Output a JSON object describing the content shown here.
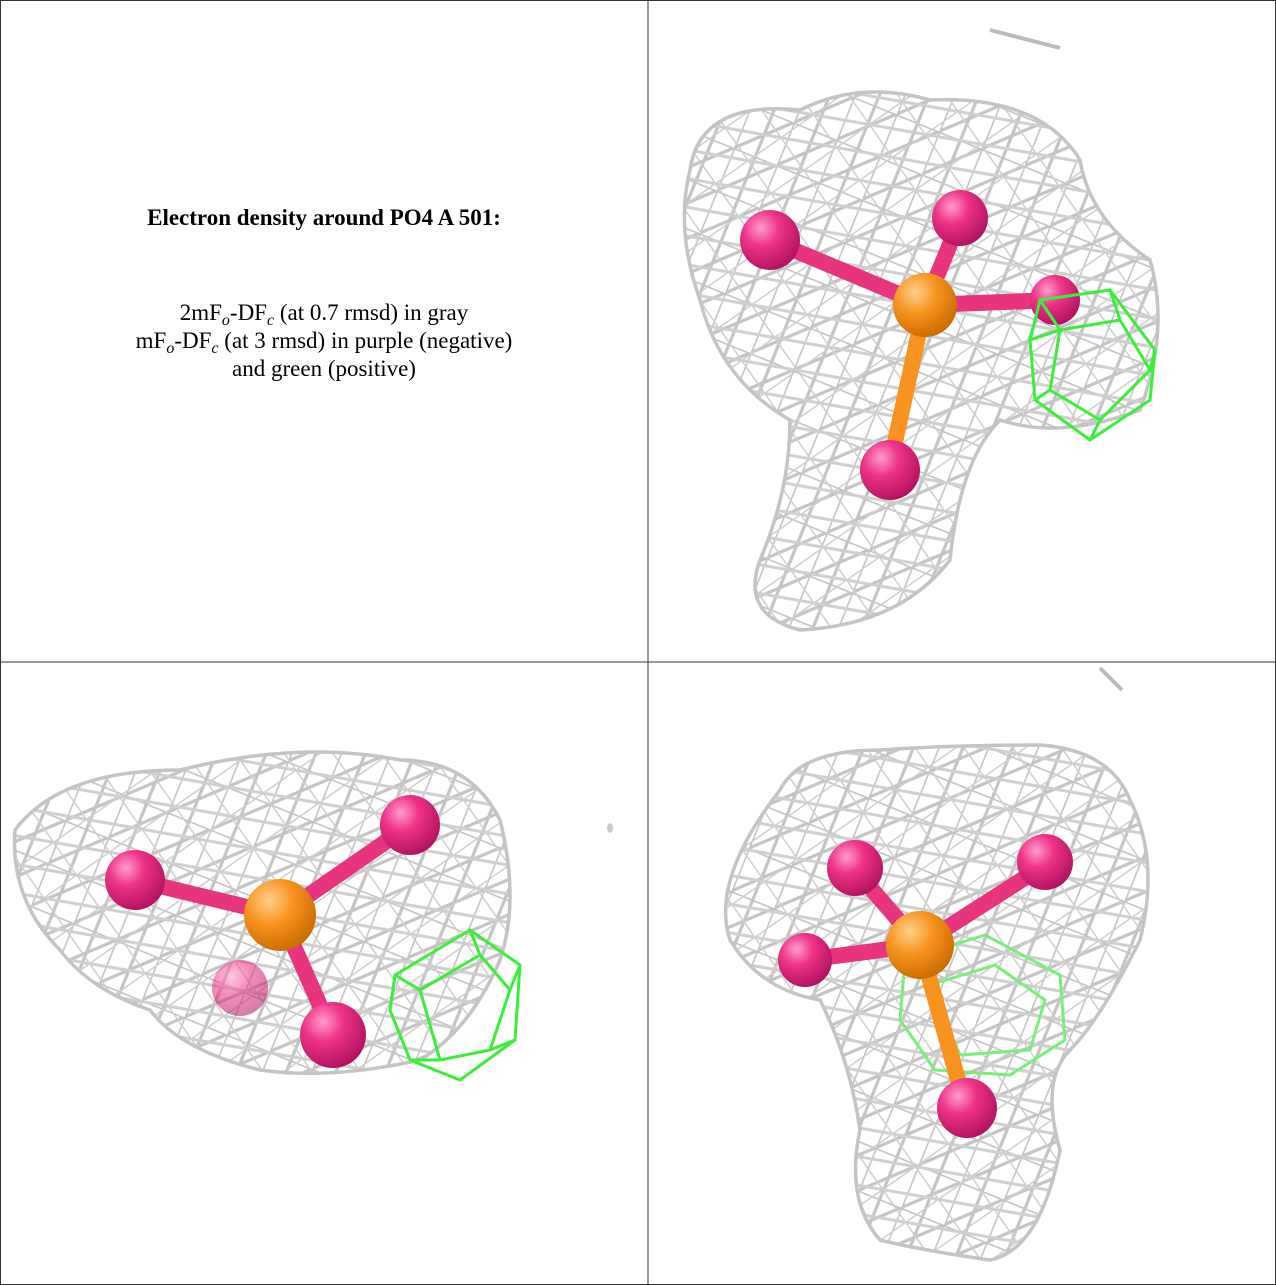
{
  "title": "Electron density around PO4 A 501:",
  "lines": [
    [
      "2mF",
      "o",
      "-DF",
      "c",
      " (at 0.7 rmsd) in gray"
    ],
    [
      "mF",
      "o",
      "-DF",
      "c",
      " (at 3 rmsd) in purple (negative)"
    ],
    [
      "and green (positive)"
    ]
  ]
}
